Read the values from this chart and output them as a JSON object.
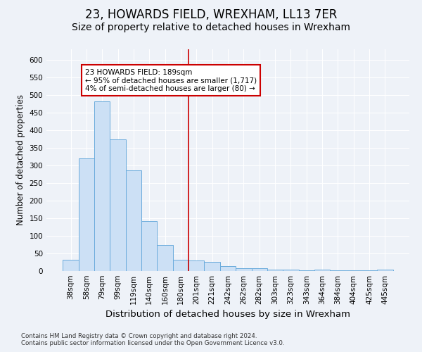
{
  "title": "23, HOWARDS FIELD, WREXHAM, LL13 7ER",
  "subtitle": "Size of property relative to detached houses in Wrexham",
  "xlabel": "Distribution of detached houses by size in Wrexham",
  "ylabel": "Number of detached properties",
  "footer_line1": "Contains HM Land Registry data © Crown copyright and database right 2024.",
  "footer_line2": "Contains public sector information licensed under the Open Government Licence v3.0.",
  "categories": [
    "38sqm",
    "58sqm",
    "79sqm",
    "99sqm",
    "119sqm",
    "140sqm",
    "160sqm",
    "180sqm",
    "201sqm",
    "221sqm",
    "242sqm",
    "262sqm",
    "282sqm",
    "303sqm",
    "323sqm",
    "343sqm",
    "364sqm",
    "384sqm",
    "404sqm",
    "425sqm",
    "445sqm"
  ],
  "values": [
    32,
    320,
    482,
    375,
    287,
    143,
    75,
    32,
    30,
    27,
    15,
    8,
    8,
    5,
    5,
    3,
    5,
    3,
    3,
    3,
    5
  ],
  "bar_color": "#cce0f5",
  "bar_edge_color": "#6aabdc",
  "property_line_x": 7.5,
  "annotation_text": "23 HOWARDS FIELD: 189sqm\n← 95% of detached houses are smaller (1,717)\n4% of semi-detached houses are larger (80) →",
  "annotation_box_color": "#ffffff",
  "annotation_box_edge_color": "#cc0000",
  "property_line_color": "#cc0000",
  "ylim": [
    0,
    630
  ],
  "yticks": [
    0,
    50,
    100,
    150,
    200,
    250,
    300,
    350,
    400,
    450,
    500,
    550,
    600
  ],
  "background_color": "#eef2f8",
  "axes_background": "#eef2f8",
  "grid_color": "#ffffff",
  "title_fontsize": 12,
  "subtitle_fontsize": 10,
  "xlabel_fontsize": 9.5,
  "ylabel_fontsize": 8.5,
  "tick_fontsize": 7.5,
  "annotation_fontsize": 7.5
}
